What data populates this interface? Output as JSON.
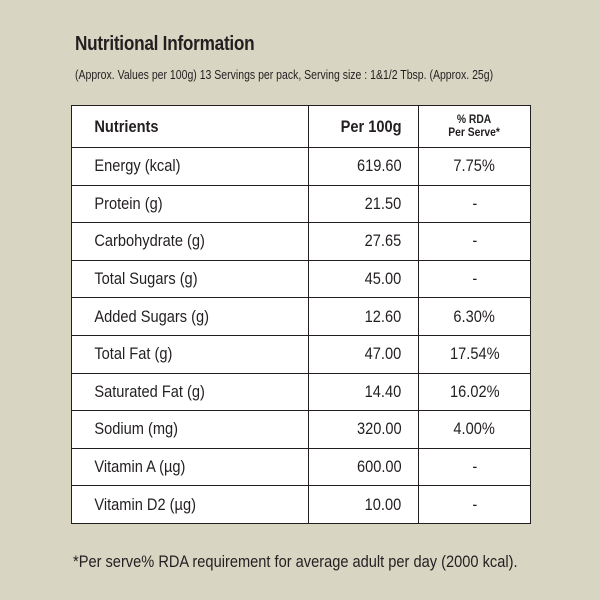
{
  "title": "Nutritional Information",
  "subtitle": "(Approx. Values per 100g) 13 Servings per pack, Serving size : 1&1/2 Tbsp. (Approx. 25g)",
  "table": {
    "headers": {
      "nutrients": "Nutrients",
      "per100g": "Per 100g",
      "rda_line1": "% RDA",
      "rda_line2": "Per Serve*"
    },
    "rows": [
      {
        "name": "Energy (kcal)",
        "per100g": "619.60",
        "rda": "7.75%"
      },
      {
        "name": "Protein (g)",
        "per100g": "21.50",
        "rda": "-"
      },
      {
        "name": "Carbohydrate (g)",
        "per100g": "27.65",
        "rda": "-"
      },
      {
        "name": "Total Sugars (g)",
        "per100g": "45.00",
        "rda": "-"
      },
      {
        "name": "Added Sugars (g)",
        "per100g": "12.60",
        "rda": "6.30%"
      },
      {
        "name": "Total Fat (g)",
        "per100g": "47.00",
        "rda": "17.54%"
      },
      {
        "name": "Saturated Fat (g)",
        "per100g": "14.40",
        "rda": "16.02%"
      },
      {
        "name": "Sodium (mg)",
        "per100g": "320.00",
        "rda": "4.00%"
      },
      {
        "name": "Vitamin A (µg)",
        "per100g": "600.00",
        "rda": "-"
      },
      {
        "name": "Vitamin D2 (µg)",
        "per100g": "10.00",
        "rda": "-"
      }
    ]
  },
  "footnote": "*Per serve% RDA requirement for average adult per day (2000 kcal).",
  "colors": {
    "background": "#d9d5c3",
    "table_background": "#ffffff",
    "text": "#231f20"
  }
}
